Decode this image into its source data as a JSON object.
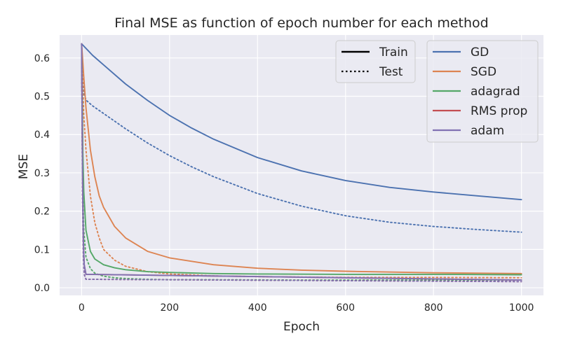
{
  "chart_data": {
    "type": "line",
    "title": "Final MSE as function of epoch number for each method",
    "xlabel": "Epoch",
    "ylabel": "MSE",
    "xlim": [
      -50,
      1050
    ],
    "ylim": [
      -0.02,
      0.66
    ],
    "x_ticks": [
      0,
      200,
      400,
      600,
      800,
      1000
    ],
    "y_ticks": [
      0.0,
      0.1,
      0.2,
      0.3,
      0.4,
      0.5,
      0.6
    ],
    "grid": true,
    "background": "#eaeaf2",
    "legend_style": {
      "placement": "top-right",
      "entries": [
        {
          "label": "Train",
          "dash": "solid"
        },
        {
          "label": "Test",
          "dash": "dotted"
        }
      ]
    },
    "legend_methods": {
      "placement": "top-right",
      "entries": [
        "GD",
        "SGD",
        "adagrad",
        "RMS prop",
        "adam"
      ]
    },
    "series": [
      {
        "name": "GD",
        "split": "Train",
        "color": "#4c72b0",
        "x": [
          0,
          25,
          50,
          100,
          150,
          200,
          250,
          300,
          400,
          500,
          600,
          700,
          800,
          900,
          1000
        ],
        "y": [
          0.637,
          0.607,
          0.582,
          0.532,
          0.489,
          0.45,
          0.417,
          0.388,
          0.34,
          0.305,
          0.28,
          0.262,
          0.25,
          0.24,
          0.23
        ]
      },
      {
        "name": "GD",
        "split": "Test",
        "color": "#4c72b0",
        "x": [
          0,
          5,
          10,
          25,
          50,
          100,
          150,
          200,
          250,
          300,
          400,
          500,
          600,
          700,
          800,
          900,
          1000
        ],
        "y": [
          0.637,
          0.51,
          0.49,
          0.475,
          0.455,
          0.415,
          0.378,
          0.345,
          0.316,
          0.29,
          0.246,
          0.213,
          0.188,
          0.171,
          0.16,
          0.152,
          0.145
        ]
      },
      {
        "name": "SGD",
        "split": "Train",
        "color": "#dd8452",
        "x": [
          0,
          5,
          10,
          20,
          30,
          40,
          50,
          75,
          100,
          150,
          200,
          300,
          400,
          500,
          600,
          800,
          1000
        ],
        "y": [
          0.637,
          0.55,
          0.47,
          0.36,
          0.29,
          0.24,
          0.21,
          0.16,
          0.13,
          0.095,
          0.078,
          0.06,
          0.051,
          0.046,
          0.043,
          0.039,
          0.037
        ]
      },
      {
        "name": "SGD",
        "split": "Test",
        "color": "#dd8452",
        "x": [
          0,
          5,
          10,
          20,
          30,
          40,
          50,
          75,
          100,
          150,
          200,
          300,
          400,
          600,
          800,
          1000
        ],
        "y": [
          0.637,
          0.45,
          0.36,
          0.24,
          0.17,
          0.13,
          0.1,
          0.072,
          0.056,
          0.042,
          0.036,
          0.031,
          0.029,
          0.027,
          0.027,
          0.026
        ]
      },
      {
        "name": "adagrad",
        "split": "Train",
        "color": "#55a868",
        "x": [
          0,
          3,
          5,
          10,
          20,
          30,
          50,
          75,
          100,
          150,
          200,
          300,
          400,
          600,
          800,
          1000
        ],
        "y": [
          0.637,
          0.35,
          0.25,
          0.15,
          0.095,
          0.075,
          0.06,
          0.052,
          0.047,
          0.042,
          0.04,
          0.037,
          0.036,
          0.035,
          0.035,
          0.034
        ]
      },
      {
        "name": "adagrad",
        "split": "Test",
        "color": "#55a868",
        "x": [
          0,
          3,
          5,
          10,
          20,
          30,
          50,
          75,
          100,
          150,
          200,
          300,
          500,
          700,
          1000
        ],
        "y": [
          0.637,
          0.25,
          0.15,
          0.08,
          0.05,
          0.038,
          0.03,
          0.026,
          0.024,
          0.022,
          0.021,
          0.021,
          0.02,
          0.02,
          0.02
        ]
      },
      {
        "name": "RMS prop",
        "split": "Train",
        "color": "#c44e52",
        "x": [
          0,
          2,
          4,
          6,
          10,
          1000
        ],
        "y": [
          0.637,
          0.3,
          0.12,
          0.06,
          0.035,
          0.02
        ]
      },
      {
        "name": "RMS prop",
        "split": "Test",
        "color": "#c44e52",
        "x": [
          0,
          2,
          4,
          6,
          10,
          1000
        ],
        "y": [
          0.637,
          0.25,
          0.08,
          0.035,
          0.022,
          0.016
        ]
      },
      {
        "name": "adam",
        "split": "Train",
        "color": "#8172b3",
        "x": [
          0,
          2,
          4,
          6,
          10,
          1000
        ],
        "y": [
          0.637,
          0.3,
          0.12,
          0.06,
          0.035,
          0.02
        ]
      },
      {
        "name": "adam",
        "split": "Test",
        "color": "#8172b3",
        "x": [
          0,
          2,
          4,
          6,
          10,
          1000
        ],
        "y": [
          0.637,
          0.25,
          0.08,
          0.035,
          0.022,
          0.016
        ]
      }
    ]
  }
}
